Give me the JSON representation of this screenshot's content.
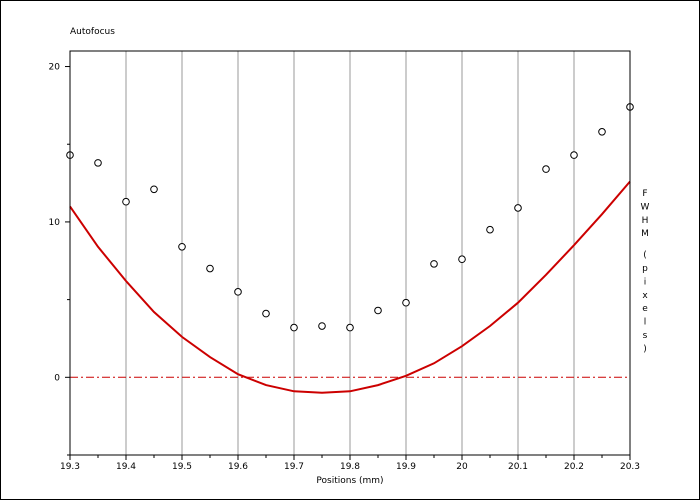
{
  "chart_data": {
    "type": "scatter",
    "title": "Autofocus",
    "xlabel": "Positions (mm)",
    "ylabel": "F W H M   ( p i x e l s )",
    "xlim": [
      19.3,
      20.3
    ],
    "ylim": [
      -5,
      21
    ],
    "x_ticks": [
      19.3,
      19.4,
      19.5,
      19.6,
      19.7,
      19.8,
      19.9,
      20.0,
      20.1,
      20.2,
      20.3
    ],
    "x_tick_labels": [
      "19.3",
      "19.4",
      "19.5",
      "19.6",
      "19.7",
      "19.8",
      "19.9",
      "20",
      "20.1",
      "20.2",
      "20.3"
    ],
    "y_ticks": [
      0,
      10,
      20
    ],
    "y_tick_labels": [
      "0",
      "10",
      "20"
    ],
    "grid": "vertical",
    "series": [
      {
        "kind": "markers",
        "color": "#000000",
        "x": [
          19.3,
          19.35,
          19.4,
          19.45,
          19.5,
          19.55,
          19.6,
          19.65,
          19.7,
          19.75,
          19.8,
          19.85,
          19.9,
          19.95,
          20.0,
          20.05,
          20.1,
          20.15,
          20.2,
          20.25,
          20.3
        ],
        "y": [
          14.3,
          13.8,
          11.3,
          12.1,
          8.4,
          7.0,
          5.5,
          4.1,
          3.2,
          3.3,
          3.2,
          4.3,
          4.8,
          7.3,
          7.6,
          9.5,
          10.9,
          13.4,
          14.3,
          15.8,
          17.4
        ]
      },
      {
        "kind": "fit-curve",
        "color": "#cc0000",
        "x": [
          19.3,
          19.35,
          19.4,
          19.45,
          19.5,
          19.55,
          19.6,
          19.65,
          19.7,
          19.75,
          19.8,
          19.85,
          19.9,
          19.95,
          20.0,
          20.05,
          20.1,
          20.15,
          20.2,
          20.25,
          20.3
        ],
        "y": [
          11.0,
          8.4,
          6.2,
          4.2,
          2.6,
          1.3,
          0.2,
          -0.5,
          -0.9,
          -1.0,
          -0.9,
          -0.5,
          0.1,
          0.9,
          2.0,
          3.3,
          4.8,
          6.6,
          8.5,
          10.5,
          12.6
        ]
      },
      {
        "kind": "zero-line",
        "color": "#cc0000",
        "y": 0
      }
    ]
  }
}
